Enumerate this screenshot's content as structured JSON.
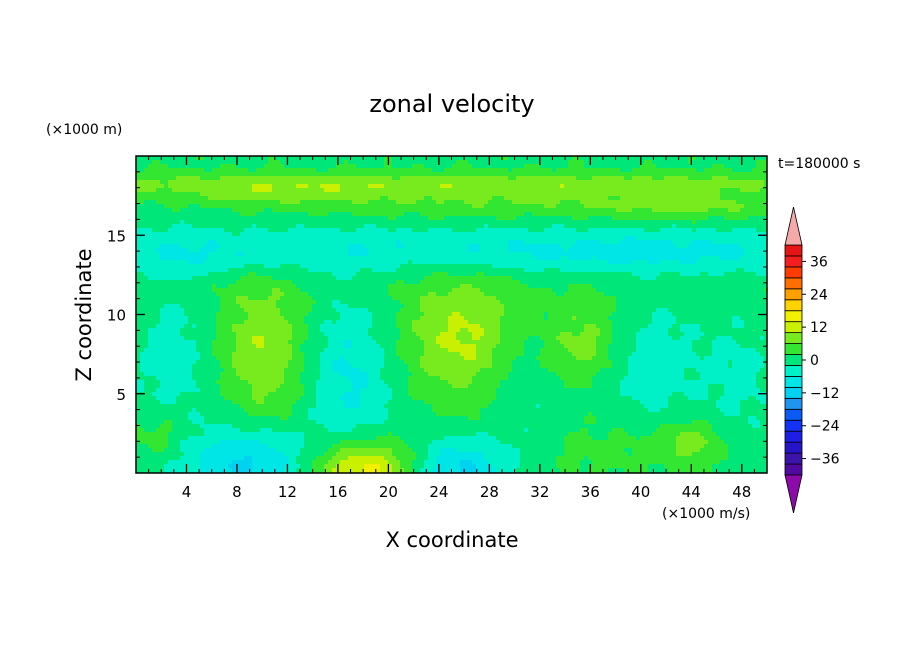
{
  "chart_data": {
    "type": "heatmap",
    "title": "zonal velocity",
    "xlabel": "X coordinate",
    "ylabel": "Z coordinate",
    "x_unit_label": "(×1000 m/s)",
    "y_unit_label": "(×1000 m)",
    "time_label": "t=180000 s",
    "xlim": [
      0,
      50
    ],
    "ylim": [
      0,
      20
    ],
    "x_ticks": [
      4,
      8,
      12,
      16,
      20,
      24,
      28,
      32,
      36,
      40,
      44,
      48
    ],
    "y_ticks": [
      5,
      10,
      15
    ],
    "colorbar": {
      "range": [
        -42,
        42
      ],
      "step": 4,
      "tick_values": [
        36,
        24,
        12,
        0,
        -12,
        -24,
        -36
      ],
      "tick_labels": [
        "36",
        "24",
        "12",
        "0",
        "−12",
        "−24",
        "−36"
      ],
      "levels": [
        {
          "min": -42,
          "max": -38,
          "color": "#500aa0"
        },
        {
          "min": -38,
          "max": -34,
          "color": "#3c14aa"
        },
        {
          "min": -34,
          "max": -30,
          "color": "#2814c8"
        },
        {
          "min": -30,
          "max": -26,
          "color": "#1e1ee6"
        },
        {
          "min": -26,
          "max": -22,
          "color": "#1432f5"
        },
        {
          "min": -22,
          "max": -18,
          "color": "#0a5af5"
        },
        {
          "min": -18,
          "max": -14,
          "color": "#1e96f0"
        },
        {
          "min": -14,
          "max": -10,
          "color": "#00d2f0"
        },
        {
          "min": -10,
          "max": -6,
          "color": "#00e6e6"
        },
        {
          "min": -6,
          "max": -2,
          "color": "#00f0c8"
        },
        {
          "min": -2,
          "max": 2,
          "color": "#00e678"
        },
        {
          "min": 2,
          "max": 6,
          "color": "#32e632"
        },
        {
          "min": 6,
          "max": 10,
          "color": "#78eb1e"
        },
        {
          "min": 10,
          "max": 14,
          "color": "#c8f000"
        },
        {
          "min": 14,
          "max": 18,
          "color": "#f0f000"
        },
        {
          "min": 18,
          "max": 22,
          "color": "#ffd200"
        },
        {
          "min": 22,
          "max": 26,
          "color": "#ffa000"
        },
        {
          "min": 26,
          "max": 30,
          "color": "#ff6e00"
        },
        {
          "min": 30,
          "max": 34,
          "color": "#ff3c00"
        },
        {
          "min": 34,
          "max": 38,
          "color": "#f51e1e"
        },
        {
          "min": 38,
          "max": 42,
          "color": "#e61414"
        }
      ],
      "under_color": "#8c0aaa",
      "over_color": "#f5aaaa"
    },
    "field": {
      "background": 1,
      "features": [
        {
          "x": 25,
          "y": 18.3,
          "sx": 40,
          "sy": 0.5,
          "v": 6
        },
        {
          "x": 28,
          "y": 17.2,
          "sx": 12,
          "sy": 0.8,
          "v": 5
        },
        {
          "x": 10,
          "y": 17.6,
          "sx": 6,
          "sy": 0.6,
          "v": 4
        },
        {
          "x": 44,
          "y": 16.8,
          "sx": 5,
          "sy": 0.6,
          "v": 5
        },
        {
          "x": 25,
          "y": 14.2,
          "sx": 40,
          "sy": 1.1,
          "v": -6
        },
        {
          "x": 40,
          "y": 13.8,
          "sx": 10,
          "sy": 0.8,
          "v": -3
        },
        {
          "x": 5,
          "y": 13.5,
          "sx": 6,
          "sy": 0.8,
          "v": -2
        },
        {
          "x": 25,
          "y": 11.5,
          "sx": 40,
          "sy": 0.6,
          "v": 1
        },
        {
          "x": 10,
          "y": 7.8,
          "sx": 2.5,
          "sy": 3.0,
          "v": 9
        },
        {
          "x": 26,
          "y": 8.5,
          "sx": 3.5,
          "sy": 2.6,
          "v": 10
        },
        {
          "x": 35.5,
          "y": 8.2,
          "sx": 2.0,
          "sy": 1.8,
          "v": 7
        },
        {
          "x": 17,
          "y": 6.2,
          "sx": 2.5,
          "sy": 3.5,
          "v": -8
        },
        {
          "x": 3,
          "y": 6.8,
          "sx": 2.5,
          "sy": 4.0,
          "v": -5
        },
        {
          "x": 30.5,
          "y": 6.0,
          "sx": 2.0,
          "sy": 3.0,
          "v": -4
        },
        {
          "x": 41,
          "y": 6.8,
          "sx": 3.0,
          "sy": 3.2,
          "v": -5
        },
        {
          "x": 48,
          "y": 6.0,
          "sx": 2.0,
          "sy": 3.0,
          "v": -4
        },
        {
          "x": 18,
          "y": 0.2,
          "sx": 3.0,
          "sy": 1.3,
          "v": 16
        },
        {
          "x": 9,
          "y": 0.6,
          "sx": 3.5,
          "sy": 1.6,
          "v": -12
        },
        {
          "x": 25.5,
          "y": 0.2,
          "sx": 2.8,
          "sy": 1.4,
          "v": -12
        },
        {
          "x": 2,
          "y": 2.5,
          "sx": 1.8,
          "sy": 1.3,
          "v": 5
        },
        {
          "x": 44,
          "y": 2.0,
          "sx": 1.8,
          "sy": 1.0,
          "v": 7
        },
        {
          "x": 38,
          "y": 1.5,
          "sx": 4.0,
          "sy": 1.2,
          "v": 3
        }
      ]
    }
  }
}
